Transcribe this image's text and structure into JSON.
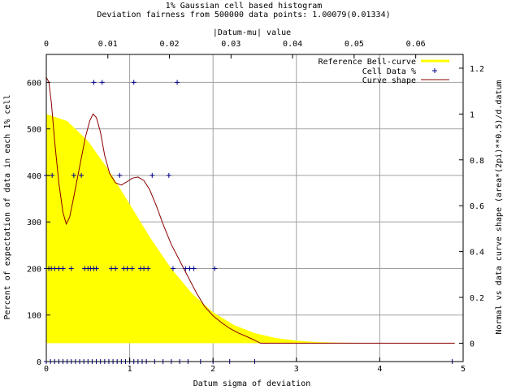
{
  "chart_data": {
    "type": "scatter",
    "title": "1% Gaussian cell based histogram",
    "subtitle": "Deviation fairness from 500000 data points: 1.00079(0.01334)",
    "x2label": "|Datum-mu| value",
    "xlabel": "Datum sigma of deviation",
    "ylabel": "Percent of expectation of data in each 1% cell",
    "y2label": "Normal vs data curve shape (area*(2pi)**0.5)/d.datum",
    "xlim": [
      0,
      5
    ],
    "ylim": [
      0,
      660
    ],
    "x2lim": [
      0,
      0.0677
    ],
    "y2lim": [
      -0.08,
      1.26
    ],
    "x_ticks": [
      "0",
      "1",
      "2",
      "3",
      "4",
      "5"
    ],
    "y_ticks": [
      "0",
      "100",
      "200",
      "300",
      "400",
      "500",
      "600"
    ],
    "x2_ticks": [
      "0",
      "0.01",
      "0.02",
      "0.03",
      "0.04",
      "0.05",
      "0.06"
    ],
    "y2_ticks": [
      "0",
      "0.2",
      "0.4",
      "0.6",
      "0.8",
      "1",
      "1.2"
    ],
    "grid": true,
    "legend_position": "top-right",
    "colors": {
      "bell": "#ffff00",
      "cells": "#00008b",
      "curve": "#8b0000",
      "grid": "#a0a0a0"
    },
    "series": [
      {
        "name": "Reference Bell-curve",
        "style": "filled-curve",
        "axis": "x1y2",
        "points": [
          [
            0,
            1
          ],
          [
            0.25,
            0.9692
          ],
          [
            0.5,
            0.8825
          ],
          [
            0.75,
            0.7548
          ],
          [
            1,
            0.6065
          ],
          [
            1.25,
            0.4578
          ],
          [
            1.5,
            0.3247
          ],
          [
            1.75,
            0.2163
          ],
          [
            2,
            0.1353
          ],
          [
            2.25,
            0.0796
          ],
          [
            2.5,
            0.0439
          ],
          [
            2.75,
            0.0228
          ],
          [
            3,
            0.0111
          ],
          [
            3.25,
            0.0051
          ],
          [
            3.5,
            0.0022
          ],
          [
            4,
            0.0003
          ],
          [
            4.5,
            0
          ],
          [
            4.9,
            0
          ]
        ]
      },
      {
        "name": "Cell Data %",
        "style": "points",
        "axis": "x1y1",
        "points": [
          [
            0.57,
            600
          ],
          [
            0.67,
            600
          ],
          [
            1.05,
            600
          ],
          [
            1.57,
            600
          ],
          [
            0,
            400
          ],
          [
            0.07,
            400
          ],
          [
            0.33,
            400
          ],
          [
            0.42,
            400
          ],
          [
            0.88,
            400
          ],
          [
            1.27,
            400
          ],
          [
            1.47,
            400
          ],
          [
            0,
            200
          ],
          [
            0.03,
            200
          ],
          [
            0.06,
            200
          ],
          [
            0.1,
            200
          ],
          [
            0.15,
            200
          ],
          [
            0.2,
            200
          ],
          [
            0.3,
            200
          ],
          [
            0.46,
            200
          ],
          [
            0.5,
            200
          ],
          [
            0.53,
            200
          ],
          [
            0.57,
            200
          ],
          [
            0.6,
            200
          ],
          [
            0.78,
            200
          ],
          [
            0.83,
            200
          ],
          [
            0.93,
            200
          ],
          [
            0.97,
            200
          ],
          [
            1.03,
            200
          ],
          [
            1.13,
            200
          ],
          [
            1.17,
            200
          ],
          [
            1.22,
            200
          ],
          [
            1.52,
            200
          ],
          [
            1.67,
            200
          ],
          [
            1.72,
            200
          ],
          [
            1.77,
            200
          ],
          [
            2.02,
            200
          ],
          [
            0,
            0
          ],
          [
            0.05,
            0
          ],
          [
            0.1,
            0
          ],
          [
            0.15,
            0
          ],
          [
            0.2,
            0
          ],
          [
            0.25,
            0
          ],
          [
            0.3,
            0
          ],
          [
            0.35,
            0
          ],
          [
            0.4,
            0
          ],
          [
            0.45,
            0
          ],
          [
            0.5,
            0
          ],
          [
            0.55,
            0
          ],
          [
            0.6,
            0
          ],
          [
            0.65,
            0
          ],
          [
            0.7,
            0
          ],
          [
            0.75,
            0
          ],
          [
            0.8,
            0
          ],
          [
            0.85,
            0
          ],
          [
            0.9,
            0
          ],
          [
            0.95,
            0
          ],
          [
            1.0,
            0
          ],
          [
            1.05,
            0
          ],
          [
            1.1,
            0
          ],
          [
            1.15,
            0
          ],
          [
            1.2,
            0
          ],
          [
            1.3,
            0
          ],
          [
            1.4,
            0
          ],
          [
            1.5,
            0
          ],
          [
            1.6,
            0
          ],
          [
            1.7,
            0
          ],
          [
            1.85,
            0
          ],
          [
            2.0,
            0
          ],
          [
            2.2,
            0
          ],
          [
            2.5,
            0
          ],
          [
            4.87,
            0
          ]
        ]
      },
      {
        "name": "Curve shape",
        "style": "line",
        "axis": "x1y2",
        "points": [
          [
            0,
            1.16
          ],
          [
            0.03,
            1.14
          ],
          [
            0.06,
            1.05
          ],
          [
            0.1,
            0.88
          ],
          [
            0.15,
            0.7
          ],
          [
            0.2,
            0.57
          ],
          [
            0.24,
            0.52
          ],
          [
            0.28,
            0.55
          ],
          [
            0.33,
            0.64
          ],
          [
            0.4,
            0.77
          ],
          [
            0.47,
            0.9
          ],
          [
            0.52,
            0.97
          ],
          [
            0.56,
            1.0
          ],
          [
            0.6,
            0.985
          ],
          [
            0.65,
            0.92
          ],
          [
            0.7,
            0.82
          ],
          [
            0.76,
            0.74
          ],
          [
            0.83,
            0.7
          ],
          [
            0.9,
            0.69
          ],
          [
            0.97,
            0.705
          ],
          [
            1.03,
            0.72
          ],
          [
            1.1,
            0.725
          ],
          [
            1.17,
            0.71
          ],
          [
            1.24,
            0.67
          ],
          [
            1.32,
            0.6
          ],
          [
            1.4,
            0.52
          ],
          [
            1.5,
            0.43
          ],
          [
            1.6,
            0.36
          ],
          [
            1.7,
            0.29
          ],
          [
            1.8,
            0.22
          ],
          [
            1.9,
            0.16
          ],
          [
            2.0,
            0.12
          ],
          [
            2.1,
            0.09
          ],
          [
            2.2,
            0.065
          ],
          [
            2.3,
            0.045
          ],
          [
            2.4,
            0.03
          ],
          [
            2.5,
            0.013
          ],
          [
            2.57,
            0
          ],
          [
            4.9,
            0
          ]
        ]
      }
    ]
  }
}
